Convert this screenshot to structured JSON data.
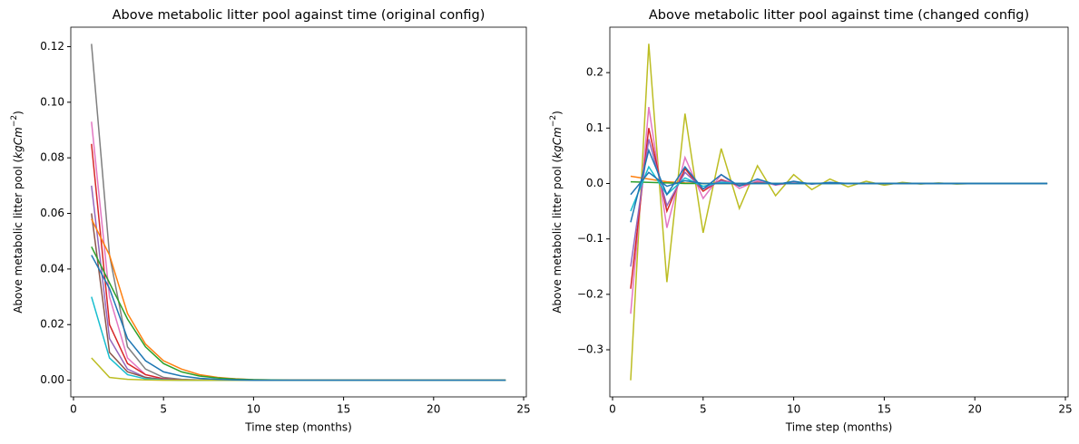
{
  "chart_data": [
    {
      "type": "line",
      "title": "Above metabolic litter pool against time (original config)",
      "xlabel": "Time step (months)",
      "ylabel": {
        "text": "Above metabolic litter pool (",
        "unit": "kgCm",
        "exp": "−2",
        "close": ")"
      },
      "x": [
        1,
        2,
        3,
        4,
        5,
        6,
        7,
        8,
        9,
        10,
        11,
        12,
        13,
        14,
        15,
        16,
        17,
        18,
        19,
        20,
        21,
        22,
        23,
        24
      ],
      "xlim": [
        -0.15,
        25.15
      ],
      "xticks": [
        0,
        5,
        10,
        15,
        20,
        25
      ],
      "ylim": [
        -0.006,
        0.127
      ],
      "yticks": [
        {
          "value": 0,
          "label": "0.00"
        },
        0.02,
        0.04,
        0.06,
        0.08,
        {
          "value": 0.1,
          "label": "0.10"
        },
        0.12
      ],
      "series": [
        {
          "color": "#7f7f7f",
          "values": [
            0.121,
            0.045,
            0.012,
            0.004,
            0.001,
            0.0003,
            0.0001,
            0,
            0,
            0,
            0,
            0,
            0,
            0,
            0,
            0,
            0,
            0,
            0,
            0,
            0,
            0,
            0,
            0
          ]
        },
        {
          "color": "#e377c2",
          "values": [
            0.093,
            0.03,
            0.008,
            0.002,
            0.0005,
            0.0001,
            0,
            0,
            0,
            0,
            0,
            0,
            0,
            0,
            0,
            0,
            0,
            0,
            0,
            0,
            0,
            0,
            0,
            0
          ]
        },
        {
          "color": "#d62728",
          "values": [
            0.085,
            0.02,
            0.006,
            0.002,
            0.0005,
            0.0001,
            0,
            0,
            0,
            0,
            0,
            0,
            0,
            0,
            0,
            0,
            0,
            0,
            0,
            0,
            0,
            0,
            0,
            0
          ]
        },
        {
          "color": "#9467bd",
          "values": [
            0.07,
            0.015,
            0.004,
            0.001,
            0.0003,
            0,
            0,
            0,
            0,
            0,
            0,
            0,
            0,
            0,
            0,
            0,
            0,
            0,
            0,
            0,
            0,
            0,
            0,
            0
          ]
        },
        {
          "color": "#8c564b",
          "values": [
            0.06,
            0.01,
            0.003,
            0.001,
            0.0002,
            0,
            0,
            0,
            0,
            0,
            0,
            0,
            0,
            0,
            0,
            0,
            0,
            0,
            0,
            0,
            0,
            0,
            0,
            0
          ]
        },
        {
          "color": "#ff7f0e",
          "values": [
            0.058,
            0.045,
            0.024,
            0.013,
            0.007,
            0.004,
            0.002,
            0.001,
            0.0005,
            0.0002,
            0.0001,
            0,
            0,
            0,
            0,
            0,
            0,
            0,
            0,
            0,
            0,
            0,
            0,
            0
          ]
        },
        {
          "color": "#2ca02c",
          "values": [
            0.048,
            0.035,
            0.022,
            0.012,
            0.006,
            0.003,
            0.0015,
            0.0008,
            0.0004,
            0.0002,
            0.0001,
            0,
            0,
            0,
            0,
            0,
            0,
            0,
            0,
            0,
            0,
            0,
            0,
            0
          ]
        },
        {
          "color": "#17becf",
          "values": [
            0.03,
            0.008,
            0.002,
            0.0005,
            0.0001,
            0,
            0,
            0,
            0,
            0,
            0,
            0,
            0,
            0,
            0,
            0,
            0,
            0,
            0,
            0,
            0,
            0,
            0,
            0
          ]
        },
        {
          "color": "#bcbd22",
          "values": [
            0.008,
            0.001,
            0.0003,
            0.0001,
            0,
            0,
            0,
            0,
            0,
            0,
            0,
            0,
            0,
            0,
            0,
            0,
            0,
            0,
            0,
            0,
            0,
            0,
            0,
            0
          ]
        },
        {
          "color": "#1f77b4",
          "values": [
            0.045,
            0.033,
            0.015,
            0.007,
            0.003,
            0.0015,
            0.0007,
            0.0003,
            0.0001,
            0,
            0,
            0,
            0,
            0,
            0,
            0,
            0,
            0,
            0,
            0,
            0,
            0,
            0,
            0
          ]
        }
      ]
    },
    {
      "type": "line",
      "title": "Above metabolic litter pool against time (changed config)",
      "xlabel": "Time step (months)",
      "ylabel": {
        "text": "Above metabolic litter pool (",
        "unit": "kgCm",
        "exp": "−2",
        "close": ")"
      },
      "x": [
        1,
        2,
        3,
        4,
        5,
        6,
        7,
        8,
        9,
        10,
        11,
        12,
        13,
        14,
        15,
        16,
        17,
        18,
        19,
        20,
        21,
        22,
        23,
        24
      ],
      "xlim": [
        -0.15,
        25.15
      ],
      "xticks": [
        0,
        5,
        10,
        15,
        20,
        25
      ],
      "ylim": [
        -0.385,
        0.282
      ],
      "yticks": [
        {
          "value": -0.3,
          "label": "−0.3"
        },
        {
          "value": -0.2,
          "label": "−0.2"
        },
        {
          "value": -0.1,
          "label": "−0.1"
        },
        {
          "value": 0,
          "label": "0.0"
        },
        0.1,
        0.2
      ],
      "series": [
        {
          "color": "#bcbd22",
          "values": [
            -0.355,
            0.252,
            -0.178,
            0.126,
            -0.089,
            0.063,
            -0.045,
            0.032,
            -0.022,
            0.016,
            -0.011,
            0.008,
            -0.006,
            0.004,
            -0.003,
            0.002,
            -0.001,
            0.001,
            -0.001,
            0,
            0,
            0,
            0,
            0
          ]
        },
        {
          "color": "#e377c2",
          "values": [
            -0.235,
            0.138,
            -0.08,
            0.047,
            -0.027,
            0.016,
            -0.009,
            0.005,
            -0.003,
            0.002,
            -0.001,
            0.001,
            0,
            0,
            0,
            0,
            0,
            0,
            0,
            0,
            0,
            0,
            0,
            0
          ]
        },
        {
          "color": "#d62728",
          "values": [
            -0.19,
            0.1,
            -0.05,
            0.027,
            -0.014,
            0.007,
            -0.004,
            0.002,
            -0.001,
            0,
            0,
            0,
            0,
            0,
            0,
            0,
            0,
            0,
            0,
            0,
            0,
            0,
            0,
            0
          ]
        },
        {
          "color": "#9467bd",
          "values": [
            -0.15,
            0.08,
            -0.04,
            0.02,
            -0.01,
            0.005,
            -0.002,
            0.001,
            0,
            0,
            0,
            0,
            0,
            0,
            0,
            0,
            0,
            0,
            0,
            0,
            0,
            0,
            0,
            0
          ]
        },
        {
          "color": "#ff7f0e",
          "values": [
            0.013,
            0.008,
            0.003,
            0.001,
            0,
            0,
            0,
            0,
            0,
            0,
            0,
            0,
            0,
            0,
            0,
            0,
            0,
            0,
            0,
            0,
            0,
            0,
            0,
            0
          ]
        },
        {
          "color": "#2ca02c",
          "values": [
            0.003,
            0.002,
            0.001,
            0,
            0,
            0,
            0,
            0,
            0,
            0,
            0,
            0,
            0,
            0,
            0,
            0,
            0,
            0,
            0,
            0,
            0,
            0,
            0,
            0
          ]
        },
        {
          "color": "#17becf",
          "values": [
            -0.05,
            0.03,
            -0.02,
            0.01,
            -0.005,
            0.002,
            0,
            0,
            0,
            0,
            0,
            0,
            0,
            0,
            0,
            0,
            0,
            0,
            0,
            0,
            0,
            0,
            0,
            0
          ]
        },
        {
          "color": "#1f77b4",
          "values": [
            -0.07,
            0.06,
            -0.02,
            0.03,
            -0.01,
            0.016,
            -0.005,
            0.008,
            -0.002,
            0.004,
            -0.001,
            0.002,
            0,
            0,
            0,
            0,
            0,
            0,
            0,
            0,
            0,
            0,
            0,
            0
          ]
        },
        {
          "color": "#1f77b4",
          "values": [
            -0.02,
            0.02,
            -0.005,
            0.005,
            0,
            0,
            0,
            0,
            0,
            0,
            0,
            0,
            0,
            0,
            0,
            0,
            0,
            0,
            0,
            0,
            0,
            0,
            0,
            0
          ]
        }
      ]
    }
  ]
}
